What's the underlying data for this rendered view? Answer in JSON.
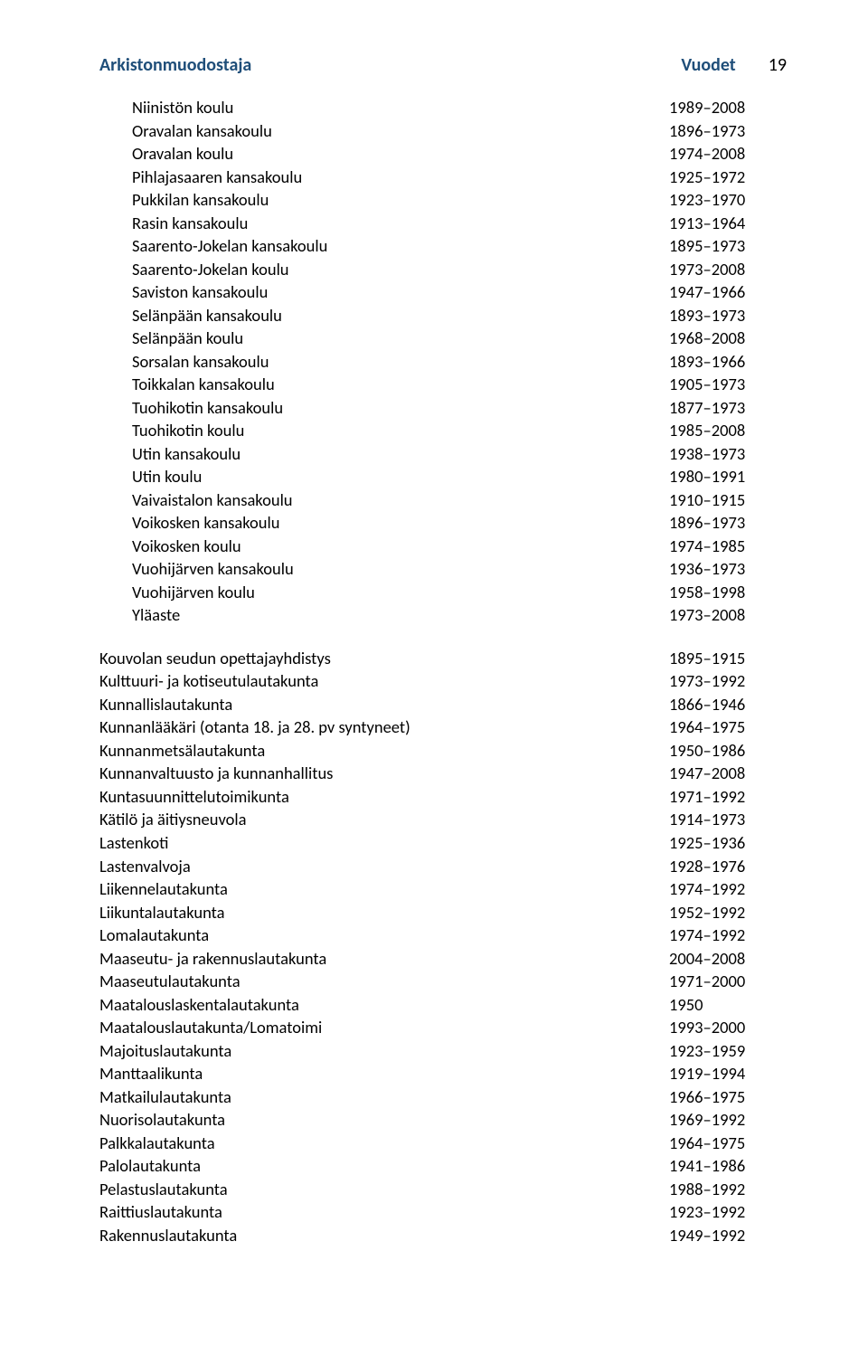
{
  "header": {
    "left": "Arkistonmuodostaja",
    "right": "Vuodet",
    "page": "19"
  },
  "indented": [
    {
      "label": "Niinistön koulu",
      "years": "1989–2008"
    },
    {
      "label": "Oravalan kansakoulu",
      "years": "1896–1973"
    },
    {
      "label": "Oravalan koulu",
      "years": "1974–2008"
    },
    {
      "label": "Pihlajasaaren kansakoulu",
      "years": "1925–1972"
    },
    {
      "label": "Pukkilan kansakoulu",
      "years": "1923–1970"
    },
    {
      "label": "Rasin kansakoulu",
      "years": "1913–1964"
    },
    {
      "label": "Saarento-Jokelan kansakoulu",
      "years": "1895–1973"
    },
    {
      "label": "Saarento-Jokelan koulu",
      "years": "1973–2008"
    },
    {
      "label": "Saviston kansakoulu",
      "years": "1947–1966"
    },
    {
      "label": "Selänpään kansakoulu",
      "years": "1893–1973"
    },
    {
      "label": "Selänpään koulu",
      "years": "1968–2008"
    },
    {
      "label": "Sorsalan kansakoulu",
      "years": "1893–1966"
    },
    {
      "label": "Toikkalan kansakoulu",
      "years": "1905–1973"
    },
    {
      "label": "Tuohikotin kansakoulu",
      "years": "1877–1973"
    },
    {
      "label": "Tuohikotin koulu",
      "years": "1985–2008"
    },
    {
      "label": "Utin kansakoulu",
      "years": "1938–1973"
    },
    {
      "label": "Utin koulu",
      "years": "1980–1991"
    },
    {
      "label": "Vaivaistalon kansakoulu",
      "years": "1910–1915"
    },
    {
      "label": "Voikosken kansakoulu",
      "years": "1896–1973"
    },
    {
      "label": "Voikosken koulu",
      "years": "1974–1985"
    },
    {
      "label": "Vuohijärven kansakoulu",
      "years": "1936–1973"
    },
    {
      "label": "Vuohijärven koulu",
      "years": "1958–1998"
    },
    {
      "label": "Yläaste",
      "years": "1973–2008"
    }
  ],
  "main": [
    {
      "label": "Kouvolan seudun opettajayhdistys",
      "years": "1895–1915"
    },
    {
      "label": "Kulttuuri- ja kotiseutulautakunta",
      "years": "1973–1992"
    },
    {
      "label": "Kunnallislautakunta",
      "years": "1866–1946"
    },
    {
      "label": "Kunnanlääkäri (otanta 18. ja 28. pv syntyneet)",
      "years": "1964–1975"
    },
    {
      "label": "Kunnanmetsälautakunta",
      "years": "1950–1986"
    },
    {
      "label": "Kunnanvaltuusto ja kunnanhallitus",
      "years": "1947–2008"
    },
    {
      "label": "Kuntasuunnittelutoimikunta",
      "years": "1971–1992"
    },
    {
      "label": "Kätilö ja äitiysneuvola",
      "years": "1914–1973"
    },
    {
      "label": "Lastenkoti",
      "years": "1925–1936"
    },
    {
      "label": "Lastenvalvoja",
      "years": "1928–1976"
    },
    {
      "label": "Liikennelautakunta",
      "years": "1974–1992"
    },
    {
      "label": "Liikuntalautakunta",
      "years": "1952–1992"
    },
    {
      "label": "Lomalautakunta",
      "years": "1974–1992"
    },
    {
      "label": "Maaseutu- ja rakennuslautakunta",
      "years": "2004–2008"
    },
    {
      "label": "Maaseutulautakunta",
      "years": "1971–2000"
    },
    {
      "label": "Maatalouslaskentalautakunta",
      "years": "1950"
    },
    {
      "label": "Maatalouslautakunta/Lomatoimi",
      "years": "1993–2000"
    },
    {
      "label": "Majoituslautakunta",
      "years": "1923–1959"
    },
    {
      "label": "Manttaalikunta",
      "years": "1919–1994"
    },
    {
      "label": "Matkailulautakunta",
      "years": "1966–1975"
    },
    {
      "label": "Nuorisolautakunta",
      "years": "1969–1992"
    },
    {
      "label": "Palkkalautakunta",
      "years": "1964–1975"
    },
    {
      "label": "Palolautakunta",
      "years": "1941–1986"
    },
    {
      "label": "Pelastuslautakunta",
      "years": "1988–1992"
    },
    {
      "label": "Raittiuslautakunta",
      "years": "1923–1992"
    },
    {
      "label": "Rakennuslautakunta",
      "years": "1949–1992"
    }
  ]
}
